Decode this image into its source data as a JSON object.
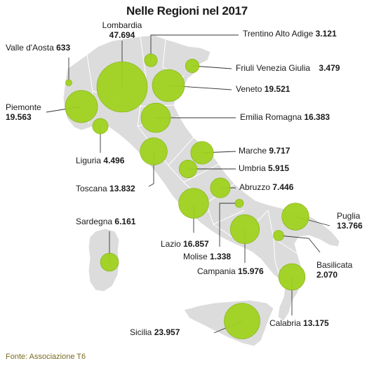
{
  "title": "Nelle Regioni nel 2017",
  "source": "Fonte: Associazione T6",
  "colors": {
    "bubble": "#9fd11f",
    "bubble_stroke": "#7fb010",
    "land": "#dcdcdc",
    "border": "#ffffff",
    "leader": "#333333"
  },
  "regions": [
    {
      "name": "Valle d'Aosta",
      "value": "633"
    },
    {
      "name": "Lombardia",
      "value": "47.694"
    },
    {
      "name": "Trentino Alto Adige",
      "value": "3.121"
    },
    {
      "name": "Friuli Venezia Giulia",
      "value": "3.479"
    },
    {
      "name": "Veneto",
      "value": "19.521"
    },
    {
      "name": "Piemonte",
      "value": "19.563"
    },
    {
      "name": "Emilia Romagna",
      "value": "16.383"
    },
    {
      "name": "Liguria",
      "value": "4.496"
    },
    {
      "name": "Marche",
      "value": "9.717"
    },
    {
      "name": "Umbria",
      "value": "5.915"
    },
    {
      "name": "Toscana",
      "value": "13.832"
    },
    {
      "name": "Abruzzo",
      "value": "7.446"
    },
    {
      "name": "Sardegna",
      "value": "6.161"
    },
    {
      "name": "Puglia",
      "value": "13.766"
    },
    {
      "name": "Lazio",
      "value": "16.857"
    },
    {
      "name": "Molise",
      "value": "1.338"
    },
    {
      "name": "Campania",
      "value": "15.976"
    },
    {
      "name": "Basilicata",
      "value": "2.070"
    },
    {
      "name": "Calabria",
      "value": "13.175"
    },
    {
      "name": "Sicilia",
      "value": "23.957"
    }
  ]
}
